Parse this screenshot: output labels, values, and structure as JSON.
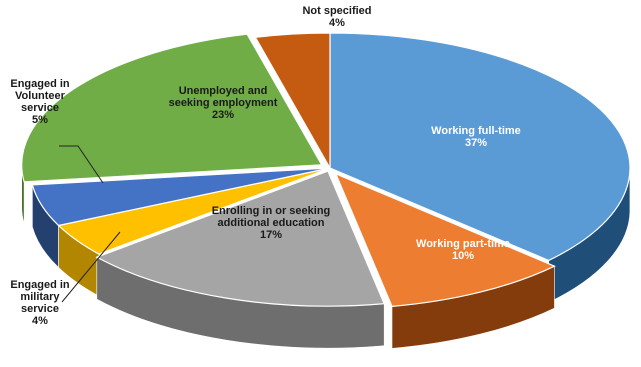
{
  "chart_data": {
    "type": "pie",
    "style": "3d-exploded",
    "slices": [
      {
        "label": "Working full-time",
        "value": 37,
        "value_label": "37%",
        "color": "#5b9bd5",
        "side_color": "#1f4e79"
      },
      {
        "label": "Working part-time",
        "value": 10,
        "value_label": "10%",
        "color": "#ed7d31",
        "side_color": "#843c0c"
      },
      {
        "label": "Enrolling in or seeking additional education",
        "value": 17,
        "value_label": "17%",
        "color": "#a5a5a5",
        "side_color": "#6e6e6e"
      },
      {
        "label": "Engaged in military service",
        "value": 4,
        "value_label": "4%",
        "color": "#ffc000",
        "side_color": "#b38600"
      },
      {
        "label": "Engaged in Volunteer service",
        "value": 5,
        "value_label": "5%",
        "color": "#4472c4",
        "side_color": "#24406e"
      },
      {
        "label": "Unemployed and seeking employment",
        "value": 23,
        "value_label": "23%",
        "color": "#70ad47",
        "side_color": "#3f6a22"
      },
      {
        "label": "Not specified",
        "value": 4,
        "value_label": "4%",
        "color": "#c55a11",
        "side_color": "#7a3508"
      }
    ],
    "label_lines": {
      "0": [
        "Working full-time"
      ],
      "1": [
        "Working part-time"
      ],
      "2": [
        "Enrolling in or seeking",
        "additional education"
      ],
      "3": [
        "Engaged in",
        "military",
        "service"
      ],
      "4": [
        "Engaged in",
        "Volunteer",
        "service"
      ],
      "5": [
        "Unemployed and",
        "seeking employment"
      ],
      "6": [
        "Not specified"
      ]
    }
  }
}
